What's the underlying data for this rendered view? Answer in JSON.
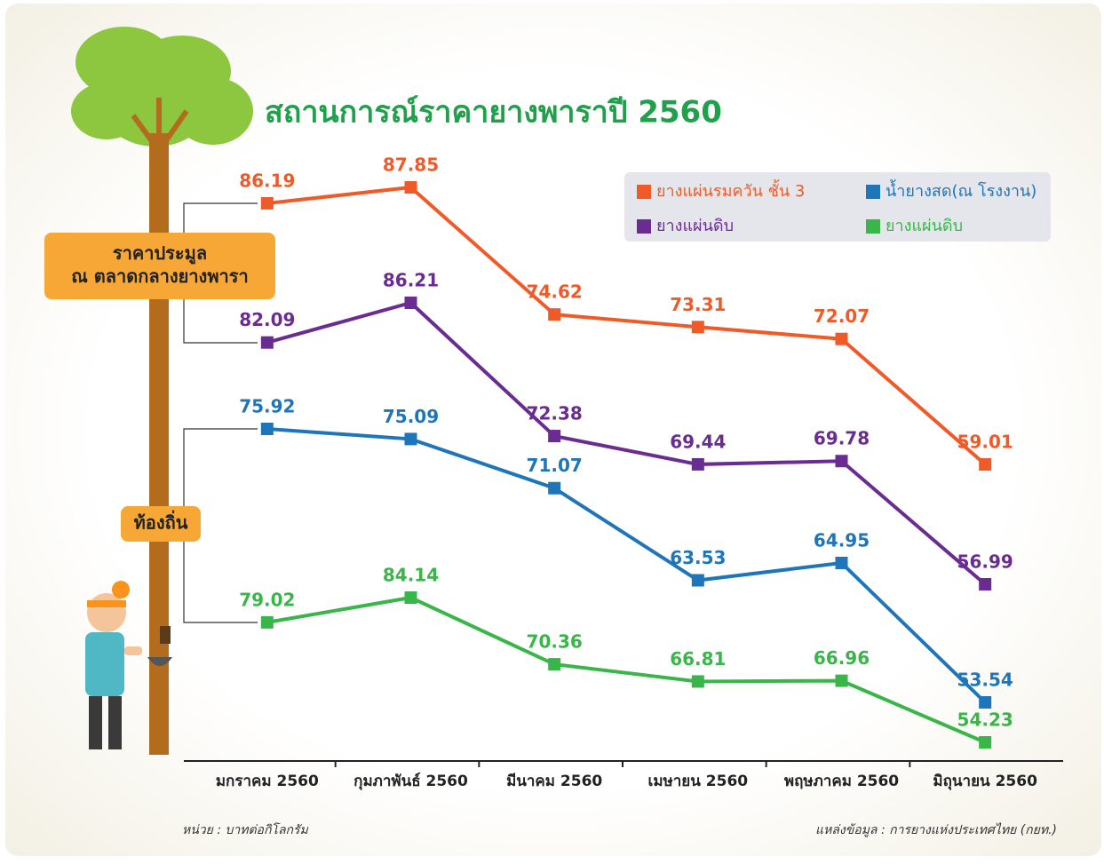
{
  "chart_data": {
    "type": "line",
    "title": "สถานการณ์ราคายางพาราปี 2560",
    "categories": [
      "มกราคม 2560",
      "กุมภาพันธ์ 2560",
      "มีนาคม 2560",
      "เมษายน 2560",
      "พฤษภาคม 2560",
      "มิถุนายน 2560"
    ],
    "series": [
      {
        "name": "ยางแผ่นรมควัน ชั้น 3",
        "color": "#f05a28",
        "values": [
          86.19,
          87.85,
          74.62,
          73.31,
          72.07,
          59.01
        ]
      },
      {
        "name": "ยางแผ่นดิบ",
        "color": "#6a2c91",
        "values": [
          82.09,
          86.21,
          72.38,
          69.44,
          69.78,
          56.99
        ]
      },
      {
        "name": "น้ำยางสด(ณ โรงงาน)",
        "color": "#1f75b9",
        "values": [
          75.92,
          75.09,
          71.07,
          63.53,
          64.95,
          53.54
        ]
      },
      {
        "name": "ยางแผ่นดิบ",
        "color": "#3ab54a",
        "values": [
          79.02,
          84.14,
          70.36,
          66.81,
          66.96,
          54.23
        ]
      }
    ],
    "groups": [
      {
        "lines": [
          "ราคาประมูล",
          "ณ ตลาดกลางยางพารา"
        ]
      },
      {
        "lines": [
          "ท้องถิ่น"
        ]
      }
    ],
    "unit_note": "หน่วย : บาทต่อกิโลกรัม",
    "source": "แหล่งข้อมูล : การยางแห่งประเทศไทย (กยท.)"
  }
}
